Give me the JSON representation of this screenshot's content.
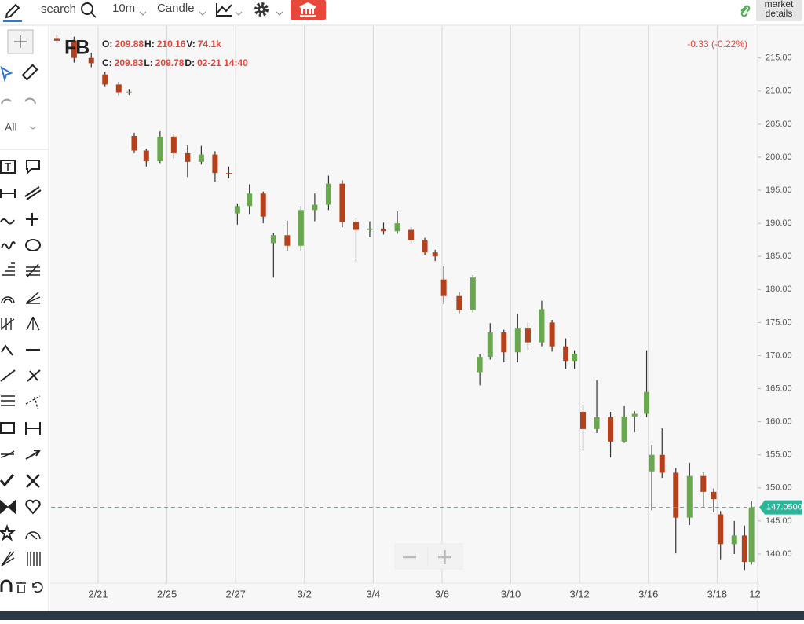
{
  "toolbar": {
    "search": "search",
    "interval": "10m",
    "chart_style": "Candle",
    "market_details": [
      "market",
      "details"
    ]
  },
  "sidebar": {
    "filter": "All"
  },
  "legend": {
    "symbol": "FB",
    "row1": [
      {
        "label": "O:",
        "value": "209.88"
      },
      {
        "label": "H:",
        "value": "210.16"
      },
      {
        "label": "V:",
        "value": "74.1k"
      }
    ],
    "row2": [
      {
        "label": "C:",
        "value": "209.83"
      },
      {
        "label": "L:",
        "value": "209.78"
      },
      {
        "label": "D:",
        "value": "02-21 14:40"
      }
    ],
    "change": "-0.33 (-0.22%)"
  },
  "chart_data": {
    "type": "candlestick",
    "x": [
      -0.2,
      0.3,
      0.8,
      1.2,
      1.6,
      1.9,
      2.05,
      2.4,
      2.8,
      3.2,
      3.6,
      4.0,
      4.4,
      4.8,
      5.05,
      5.4,
      5.8,
      6.1,
      6.5,
      6.9,
      7.3,
      7.7,
      8.1,
      8.5,
      8.9,
      9.3,
      9.7,
      10.1,
      10.5,
      10.8,
      11.05,
      11.5,
      11.9,
      12.1,
      12.4,
      12.8,
      13.2,
      13.5,
      13.9,
      14.2,
      14.6,
      14.85,
      15.1,
      15.5,
      15.9,
      16.3,
      16.6,
      16.95,
      17.1,
      17.4,
      17.8,
      18.2,
      18.6,
      18.9,
      19.1,
      19.5,
      19.8,
      20.0
    ],
    "open": [
      218.0,
      217.6,
      215.0,
      212.5,
      211.0,
      209.8,
      203.2,
      201.0,
      199.4,
      203.1,
      200.6,
      199.3,
      200.4,
      197.6,
      191.5,
      192.6,
      194.5,
      187.0,
      188.2,
      186.6,
      192.0,
      192.8,
      196.0,
      190.2,
      189.0,
      189.2,
      188.8,
      189.0,
      187.4,
      185.6,
      181.5,
      179.0,
      176.9,
      167.5,
      169.8,
      173.5,
      170.5,
      174.2,
      172.0,
      175.0,
      171.4,
      169.2,
      161.5,
      158.9,
      160.7,
      157.0,
      160.8,
      161.2,
      152.5,
      155.0,
      152.3,
      145.5,
      151.8,
      149.4,
      146.0,
      141.5,
      142.8,
      138.8
    ],
    "high": [
      218.5,
      218.2,
      215.8,
      212.9,
      211.4,
      210.3,
      203.7,
      201.3,
      203.9,
      203.5,
      201.8,
      201.7,
      200.9,
      198.6,
      193.0,
      195.9,
      194.8,
      188.5,
      190.4,
      192.6,
      194.5,
      197.2,
      196.5,
      190.9,
      190.3,
      190.1,
      191.8,
      189.4,
      187.8,
      186.0,
      183.5,
      179.6,
      182.2,
      170.2,
      174.9,
      173.9,
      176.3,
      175.0,
      178.3,
      175.4,
      172.6,
      170.8,
      162.6,
      166.3,
      161.5,
      162.4,
      161.6,
      170.8,
      156.5,
      159.0,
      153.0,
      153.8,
      152.4,
      149.9,
      146.5,
      145.0,
      144.3,
      148.0
    ],
    "low": [
      217.2,
      214.3,
      213.6,
      210.6,
      209.3,
      209.4,
      200.6,
      198.6,
      199.0,
      199.8,
      197.0,
      198.9,
      196.3,
      196.8,
      189.8,
      191.4,
      190.0,
      181.8,
      185.8,
      185.9,
      190.3,
      192.0,
      189.4,
      184.2,
      187.9,
      188.3,
      188.4,
      186.9,
      185.2,
      184.3,
      177.8,
      176.4,
      176.5,
      165.5,
      169.4,
      169.0,
      169.0,
      170.9,
      171.4,
      170.6,
      168.0,
      168.0,
      155.8,
      158.3,
      154.6,
      156.8,
      158.4,
      160.7,
      146.6,
      151.5,
      140.1,
      144.4,
      147.1,
      146.3,
      139.2,
      140.0,
      137.6,
      138.4
    ],
    "close": [
      217.6,
      215.0,
      214.2,
      211.0,
      209.8,
      209.9,
      201.0,
      199.4,
      203.1,
      200.6,
      199.3,
      200.4,
      197.6,
      197.5,
      192.6,
      194.5,
      191.0,
      188.2,
      186.6,
      192.0,
      192.8,
      196.0,
      190.2,
      189.0,
      189.2,
      188.8,
      190.0,
      187.4,
      185.6,
      185.0,
      179.0,
      176.9,
      181.8,
      169.8,
      173.5,
      170.5,
      174.2,
      172.0,
      177.0,
      171.4,
      169.2,
      170.3,
      158.9,
      160.7,
      157.0,
      160.8,
      161.2,
      164.5,
      155.0,
      152.3,
      145.5,
      151.8,
      149.4,
      148.3,
      141.5,
      142.8,
      138.8,
      147.05
    ],
    "up_color": "#6aa84f",
    "down_color": "#b5401c",
    "wick_color": "#333333",
    "xlim": [
      -0.37,
      20.18
    ],
    "xticks": [
      {
        "value": 1,
        "label": "2/21"
      },
      {
        "value": 3,
        "label": "2/25"
      },
      {
        "value": 5,
        "label": "2/27"
      },
      {
        "value": 7,
        "label": "3/2"
      },
      {
        "value": 9,
        "label": "3/4"
      },
      {
        "value": 11,
        "label": "3/6"
      },
      {
        "value": 13,
        "label": "3/10"
      },
      {
        "value": 15,
        "label": "3/12"
      },
      {
        "value": 17,
        "label": "3/16"
      },
      {
        "value": 19,
        "label": "3/18"
      },
      {
        "value": 20.1,
        "label": "12"
      }
    ],
    "ylim": [
      135.6,
      219.6
    ],
    "yticks": [
      {
        "value": 140,
        "label": "140.00"
      },
      {
        "value": 145,
        "label": "145.00"
      },
      {
        "value": 150,
        "label": "150.00"
      },
      {
        "value": 155,
        "label": "155.00"
      },
      {
        "value": 160,
        "label": "160.00"
      },
      {
        "value": 165,
        "label": "165.00"
      },
      {
        "value": 170,
        "label": "170.00"
      },
      {
        "value": 175,
        "label": "175.00"
      },
      {
        "value": 180,
        "label": "180.00"
      },
      {
        "value": 185,
        "label": "185.00"
      },
      {
        "value": 190,
        "label": "190.00"
      },
      {
        "value": 195,
        "label": "195.00"
      },
      {
        "value": 200,
        "label": "200.00"
      },
      {
        "value": 205,
        "label": "205.00"
      },
      {
        "value": 210,
        "label": "210.00"
      },
      {
        "value": 215,
        "label": "215.00"
      }
    ],
    "grid": true,
    "last_price": {
      "value": 147.05,
      "label": "147.0500"
    },
    "last_price_color": "#2bb59a"
  }
}
